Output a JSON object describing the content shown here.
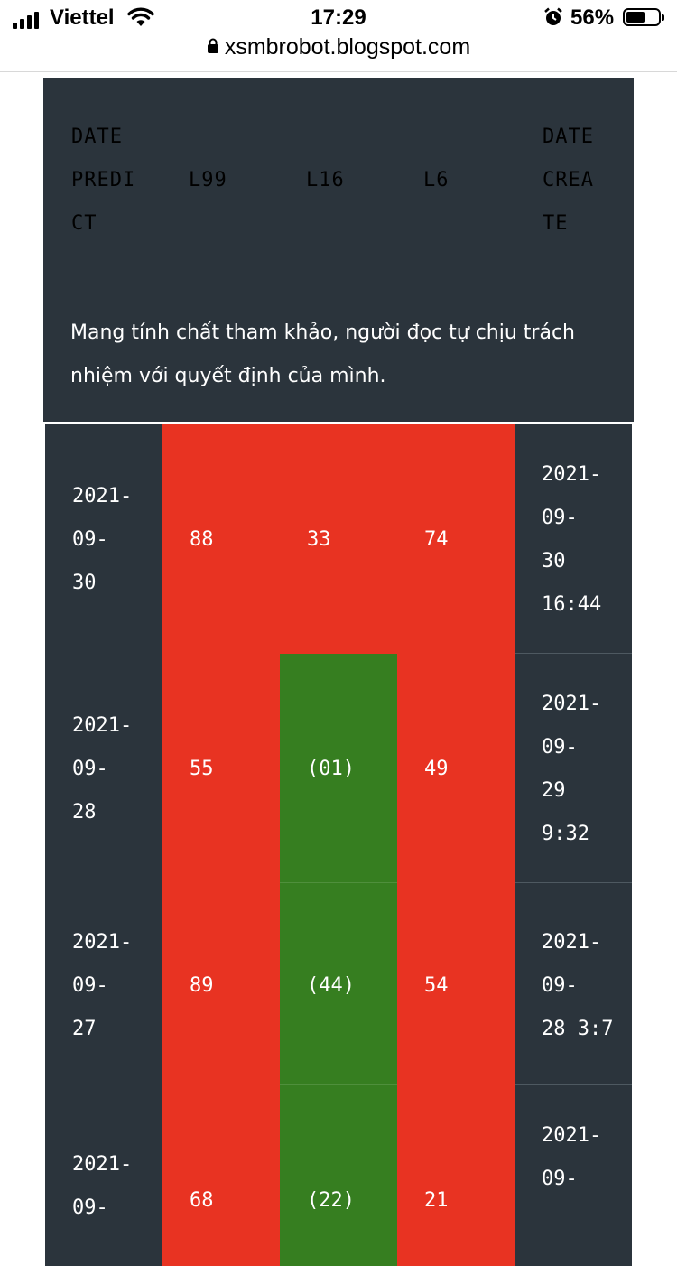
{
  "status_bar": {
    "carrier": "Viettel",
    "time": "17:29",
    "battery": "56%"
  },
  "browser": {
    "url": "xsmbrobot.blogspot.com"
  },
  "table": {
    "headers": {
      "date_predict": "DATE\nPREDI\nCT",
      "l99": "L99",
      "l16": "L16",
      "l6": "L6",
      "date_create": "DATE\nCREA\nTE"
    },
    "disclaimer": "Mang tính chất tham khảo, người đọc tự chịu trách nhiệm với quyết định của mình.",
    "rows": [
      {
        "date_predict": "2021-\n09-\n30",
        "l99": "88",
        "l16": "33",
        "l6": "74",
        "date_create": "2021-\n09-\n30\n16:44",
        "l99_status": "miss",
        "l16_status": "miss",
        "l6_status": "miss"
      },
      {
        "date_predict": "2021-\n09-\n28",
        "l99": "55",
        "l16": "(01)",
        "l6": "49",
        "date_create": "2021-\n09-\n29\n9:32",
        "l99_status": "miss",
        "l16_status": "hit",
        "l6_status": "miss"
      },
      {
        "date_predict": "2021-\n09-\n27",
        "l99": "89",
        "l16": "(44)",
        "l6": "54",
        "date_create": "2021-\n09-\n28 3:7",
        "l99_status": "miss",
        "l16_status": "hit",
        "l6_status": "miss"
      },
      {
        "date_predict": "2021-\n09-",
        "l99": "68",
        "l16": "(22)",
        "l6": "21",
        "date_create": "2021-\n09-",
        "l99_status": "miss",
        "l16_status": "hit",
        "l6_status": "miss"
      }
    ]
  },
  "colors": {
    "dark_bg": "#2b343c",
    "miss_red": "#e83322",
    "hit_green": "#367e20"
  }
}
